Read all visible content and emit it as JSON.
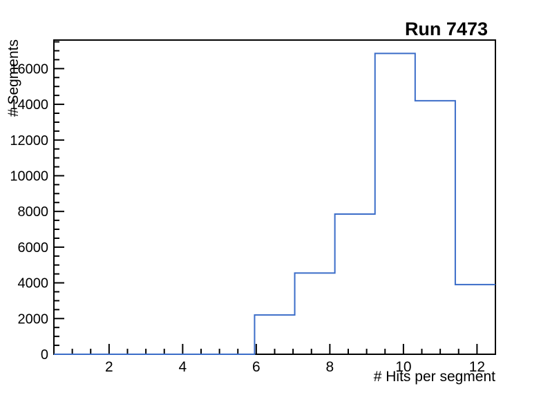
{
  "window": {
    "background_color": "#ffffff"
  },
  "chart_data": {
    "type": "histogram-step",
    "title": "Run 7473",
    "xlabel": "# Hits per segment",
    "ylabel": "# Segments",
    "xlim": [
      0.5,
      12.5
    ],
    "ylim": [
      0,
      17600
    ],
    "bin_edges": [
      0.5,
      1.5909,
      2.6818,
      3.7727,
      4.8636,
      5.9545,
      7.0455,
      8.1364,
      9.2273,
      10.3182,
      11.4091,
      12.5
    ],
    "counts": [
      0,
      0,
      0,
      0,
      0,
      2200,
      4550,
      7850,
      16850,
      14200,
      3900
    ],
    "x_major_ticks": [
      2,
      4,
      6,
      8,
      10,
      12
    ],
    "x_minor_step": 0.5,
    "y_major_ticks": [
      0,
      2000,
      4000,
      6000,
      8000,
      10000,
      12000,
      14000,
      16000
    ],
    "y_minor_step": 500,
    "line_color": "#3a6cc8",
    "axis_color": "#000000",
    "grid": false,
    "legend_position": "none"
  }
}
